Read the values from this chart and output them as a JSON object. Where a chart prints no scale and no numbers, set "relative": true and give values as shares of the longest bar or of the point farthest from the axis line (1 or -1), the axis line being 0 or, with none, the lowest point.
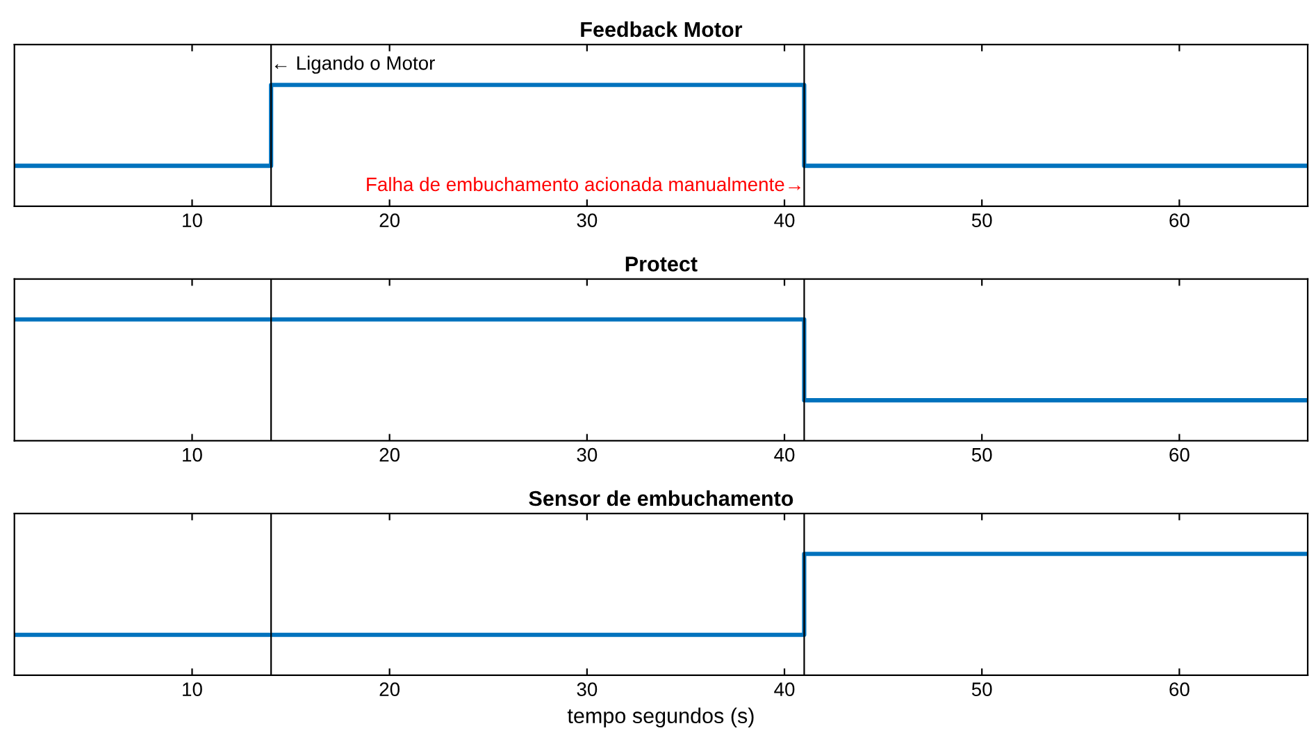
{
  "chart_data": [
    {
      "type": "step",
      "title": "Feedback Motor",
      "relative": true,
      "x": [
        1,
        14,
        41,
        66.5
      ],
      "xlim": [
        1,
        66.5
      ],
      "xticks": [
        10,
        20,
        30,
        40,
        50,
        60
      ],
      "tick_labels": "x",
      "series": [
        {
          "color": "#0072bd",
          "values": [
            0,
            1,
            0,
            0
          ]
        }
      ],
      "ref_lines": [
        {
          "axis": "x",
          "value": 14,
          "color": "#000000"
        },
        {
          "axis": "x",
          "value": 41,
          "color": "#000000"
        }
      ],
      "annotations": [
        {
          "text": "← Ligando o Motor",
          "x": 14,
          "y": 1.25
        },
        {
          "text": "Falha de embuchamento acionada manualmente→",
          "x": 41,
          "y": -0.25
        }
      ]
    },
    {
      "type": "step",
      "title": "Protect",
      "relative": true,
      "x": [
        1,
        14,
        41,
        66.5
      ],
      "xlim": [
        1,
        66.5
      ],
      "xticks": [
        10,
        20,
        30,
        40,
        50,
        60
      ],
      "tick_labels": "x",
      "series": [
        {
          "color": "#0072bd",
          "values": [
            1,
            1,
            0,
            0
          ]
        }
      ],
      "ref_lines": [
        {
          "axis": "x",
          "value": 14,
          "color": "#000000"
        },
        {
          "axis": "x",
          "value": 41,
          "color": "#000000"
        }
      ]
    },
    {
      "type": "step",
      "title": "Sensor de embuchamento",
      "xlabel": "tempo segundos (s)",
      "relative": true,
      "x": [
        1,
        14,
        41,
        66.5
      ],
      "xlim": [
        1,
        66.5
      ],
      "xticks": [
        10,
        20,
        30,
        40,
        50,
        60
      ],
      "tick_labels": "x",
      "series": [
        {
          "color": "#0072bd",
          "values": [
            0,
            0,
            1,
            1
          ]
        }
      ],
      "ref_lines": [
        {
          "axis": "x",
          "value": 14,
          "color": "#000000"
        },
        {
          "axis": "x",
          "value": 41,
          "color": "#000000"
        }
      ]
    }
  ]
}
